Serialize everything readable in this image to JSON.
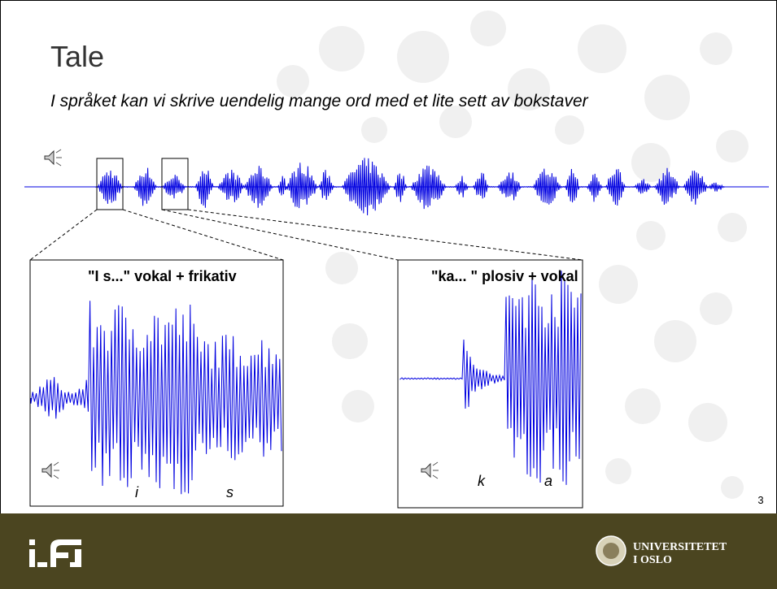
{
  "header": {
    "title": "Tale",
    "subtitle": "I språket kan vi skrive uendelig mange ord med et lite sett av bokstaver"
  },
  "panels": [
    {
      "label": "\"I s...\" vokal + frikativ",
      "sounds": [
        "i",
        "s"
      ]
    },
    {
      "label": "\"ka... \" plosiv + vokal",
      "sounds": [
        "k",
        "a"
      ]
    }
  ],
  "page_number": "3",
  "footer": {
    "university": [
      "UNIVERSITETET",
      "I OSLO"
    ]
  }
}
